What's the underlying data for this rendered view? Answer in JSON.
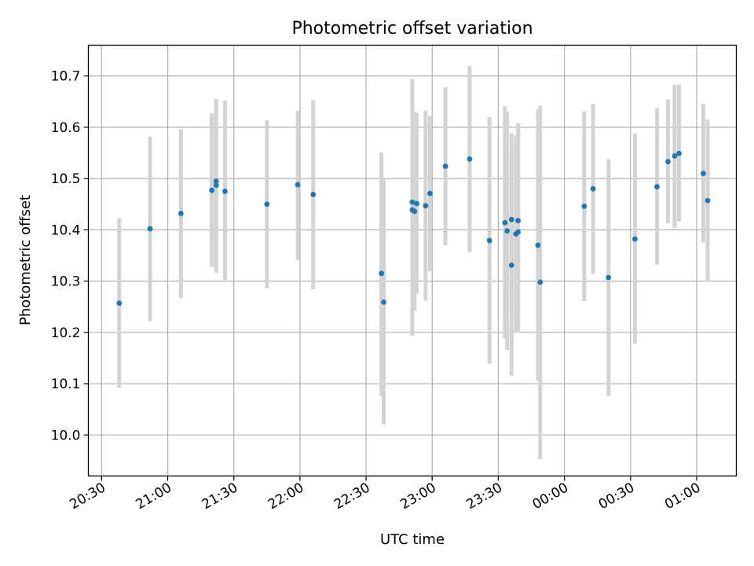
{
  "chart_data": {
    "type": "scatter",
    "title": "Photometric offset variation",
    "xlabel": "UTC time",
    "ylabel": "Photometric offset",
    "x_ticks": [
      "20:30",
      "21:00",
      "21:30",
      "22:00",
      "22:30",
      "23:00",
      "23:30",
      "00:00",
      "00:30",
      "01:00"
    ],
    "y_ticks": [
      "10.0",
      "10.1",
      "10.2",
      "10.3",
      "10.4",
      "10.5",
      "10.6",
      "10.7"
    ],
    "xlim": [
      "20:24",
      "01:18"
    ],
    "ylim": [
      9.92,
      10.76
    ],
    "grid": true,
    "colors": {
      "points": "#1f77b4",
      "errorbars": "#d3d3d3"
    },
    "series": [
      {
        "points": [
          {
            "x": "20:38",
            "y": 10.257,
            "ylo": 10.092,
            "yhi": 10.423
          },
          {
            "x": "20:52",
            "y": 10.402,
            "ylo": 10.222,
            "yhi": 10.582
          },
          {
            "x": "21:06",
            "y": 10.432,
            "ylo": 10.267,
            "yhi": 10.596
          },
          {
            "x": "21:20",
            "y": 10.477,
            "ylo": 10.328,
            "yhi": 10.627
          },
          {
            "x": "21:22",
            "y": 10.487,
            "ylo": 10.316,
            "yhi": 10.655
          },
          {
            "x": "21:22",
            "y": 10.495,
            "ylo": 10.335,
            "yhi": 10.655
          },
          {
            "x": "21:26",
            "y": 10.475,
            "ylo": 10.3,
            "yhi": 10.652
          },
          {
            "x": "21:45",
            "y": 10.45,
            "ylo": 10.286,
            "yhi": 10.614
          },
          {
            "x": "21:59",
            "y": 10.488,
            "ylo": 10.341,
            "yhi": 10.632
          },
          {
            "x": "22:06",
            "y": 10.469,
            "ylo": 10.284,
            "yhi": 10.653
          },
          {
            "x": "22:37",
            "y": 10.315,
            "ylo": 10.076,
            "yhi": 10.551
          },
          {
            "x": "22:38",
            "y": 10.259,
            "ylo": 10.02,
            "yhi": 10.5
          },
          {
            "x": "22:51",
            "y": 10.439,
            "ylo": 10.194,
            "yhi": 10.694
          },
          {
            "x": "22:51",
            "y": 10.454,
            "ylo": 10.215,
            "yhi": 10.69
          },
          {
            "x": "22:52",
            "y": 10.436,
            "ylo": 10.242,
            "yhi": 10.63
          },
          {
            "x": "22:53",
            "y": 10.451,
            "ylo": 10.276,
            "yhi": 10.627
          },
          {
            "x": "22:57",
            "y": 10.447,
            "ylo": 10.262,
            "yhi": 10.633
          },
          {
            "x": "22:59",
            "y": 10.471,
            "ylo": 10.319,
            "yhi": 10.622
          },
          {
            "x": "23:06",
            "y": 10.524,
            "ylo": 10.37,
            "yhi": 10.678
          },
          {
            "x": "23:17",
            "y": 10.538,
            "ylo": 10.356,
            "yhi": 10.719
          },
          {
            "x": "23:26",
            "y": 10.379,
            "ylo": 10.139,
            "yhi": 10.62
          },
          {
            "x": "23:33",
            "y": 10.414,
            "ylo": 10.188,
            "yhi": 10.641
          },
          {
            "x": "23:34",
            "y": 10.398,
            "ylo": 10.166,
            "yhi": 10.63
          },
          {
            "x": "23:36",
            "y": 10.331,
            "ylo": 10.116,
            "yhi": 10.546
          },
          {
            "x": "23:36",
            "y": 10.42,
            "ylo": 10.251,
            "yhi": 10.588
          },
          {
            "x": "23:38",
            "y": 10.392,
            "ylo": 10.2,
            "yhi": 10.584
          },
          {
            "x": "23:39",
            "y": 10.396,
            "ylo": 10.199,
            "yhi": 10.593
          },
          {
            "x": "23:39",
            "y": 10.418,
            "ylo": 10.228,
            "yhi": 10.608
          },
          {
            "x": "23:48",
            "y": 10.37,
            "ylo": 10.105,
            "yhi": 10.635
          },
          {
            "x": "23:49",
            "y": 10.298,
            "ylo": 9.953,
            "yhi": 10.642
          },
          {
            "x": "00:09",
            "y": 10.446,
            "ylo": 10.261,
            "yhi": 10.631
          },
          {
            "x": "00:13",
            "y": 10.48,
            "ylo": 10.314,
            "yhi": 10.646
          },
          {
            "x": "00:20",
            "y": 10.307,
            "ylo": 10.076,
            "yhi": 10.538
          },
          {
            "x": "00:32",
            "y": 10.382,
            "ylo": 10.178,
            "yhi": 10.588
          },
          {
            "x": "00:42",
            "y": 10.484,
            "ylo": 10.332,
            "yhi": 10.637
          },
          {
            "x": "00:47",
            "y": 10.533,
            "ylo": 10.413,
            "yhi": 10.654
          },
          {
            "x": "00:50",
            "y": 10.544,
            "ylo": 10.404,
            "yhi": 10.683
          },
          {
            "x": "00:52",
            "y": 10.549,
            "ylo": 10.416,
            "yhi": 10.683
          },
          {
            "x": "01:03",
            "y": 10.51,
            "ylo": 10.375,
            "yhi": 10.646
          },
          {
            "x": "01:05",
            "y": 10.457,
            "ylo": 10.299,
            "yhi": 10.615
          }
        ]
      }
    ]
  }
}
